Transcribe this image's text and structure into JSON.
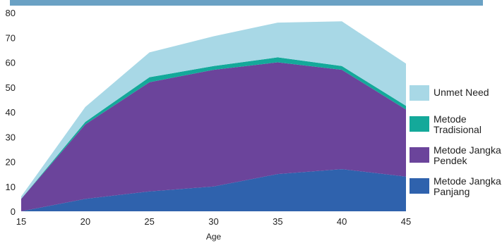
{
  "chart_data": {
    "type": "area",
    "stacked": true,
    "x": [
      15,
      20,
      25,
      30,
      35,
      40,
      45
    ],
    "xticks": [
      "15",
      "20",
      "25",
      "30",
      "35",
      "40",
      "45"
    ],
    "yticks": [
      "0",
      "10",
      "20",
      "30",
      "40",
      "50",
      "60",
      "70",
      "80"
    ],
    "xlabel": "Age",
    "ylabel": "",
    "title": "",
    "xlim": [
      15,
      45
    ],
    "ylim": [
      0,
      80
    ],
    "legend_position": "right",
    "series": [
      {
        "name": "Metode Jangka Panjang",
        "color": "#2f62ad",
        "values": [
          0,
          5,
          8,
          10,
          15,
          17,
          14
        ]
      },
      {
        "name": "Metode Jangka Pendek",
        "color": "#6b449b",
        "values": [
          5,
          30,
          44,
          47,
          45,
          40,
          27
        ]
      },
      {
        "name": "Metode Tradisional",
        "color": "#14a99a",
        "values": [
          0,
          1,
          2,
          1.5,
          2,
          1.5,
          1.5
        ]
      },
      {
        "name": "Unmet Need",
        "color": "#a8d8e6",
        "values": [
          1,
          6,
          10,
          12,
          14,
          18,
          17
        ]
      }
    ],
    "legend": [
      {
        "label": "Unmet Need",
        "color": "#a8d8e6"
      },
      {
        "label": "Metode Tradisional",
        "color": "#14a99a"
      },
      {
        "label": "Metode Jangka Pendek",
        "color": "#6b449b"
      },
      {
        "label": "Metode Jangka Panjang",
        "color": "#2f62ad"
      }
    ]
  }
}
